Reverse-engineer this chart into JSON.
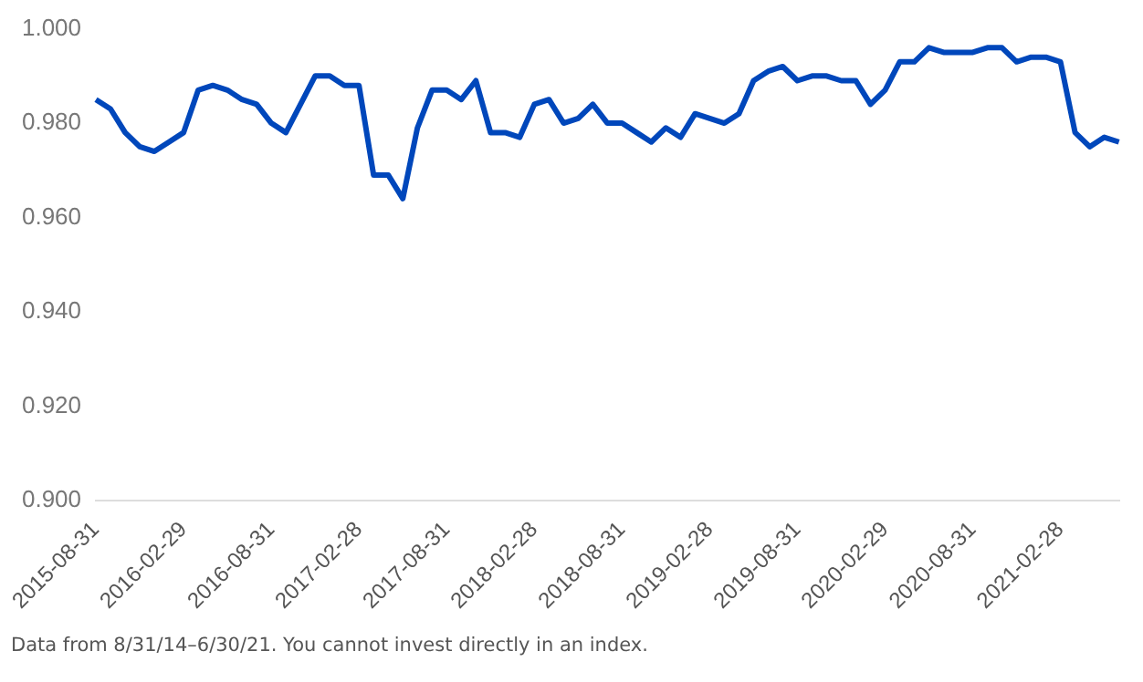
{
  "chart_data": {
    "type": "line",
    "categories": [
      "2015-08-31",
      null,
      null,
      null,
      null,
      null,
      "2016-02-29",
      null,
      null,
      null,
      null,
      null,
      "2016-08-31",
      null,
      null,
      null,
      null,
      null,
      "2017-02-28",
      null,
      null,
      null,
      null,
      null,
      "2017-08-31",
      null,
      null,
      null,
      null,
      null,
      "2018-02-28",
      null,
      null,
      null,
      null,
      null,
      "2018-08-31",
      null,
      null,
      null,
      null,
      null,
      "2019-02-28",
      null,
      null,
      null,
      null,
      null,
      "2019-08-31",
      null,
      null,
      null,
      null,
      null,
      "2020-02-29",
      null,
      null,
      null,
      null,
      null,
      "2020-08-31",
      null,
      null,
      null,
      null,
      null,
      "2021-02-28",
      null,
      null,
      null,
      null
    ],
    "series": [
      {
        "color": "#0047bb",
        "values": [
          0.985,
          0.983,
          0.978,
          0.975,
          0.974,
          0.976,
          0.978,
          0.987,
          0.988,
          0.987,
          0.985,
          0.984,
          0.98,
          0.978,
          0.984,
          0.99,
          0.99,
          0.988,
          0.988,
          0.969,
          0.969,
          0.964,
          0.979,
          0.987,
          0.987,
          0.985,
          0.989,
          0.978,
          0.978,
          0.977,
          0.984,
          0.985,
          0.98,
          0.981,
          0.984,
          0.98,
          0.98,
          0.978,
          0.976,
          0.979,
          0.977,
          0.982,
          0.981,
          0.98,
          0.982,
          0.989,
          0.991,
          0.992,
          0.989,
          0.99,
          0.99,
          0.989,
          0.989,
          0.984,
          0.987,
          0.993,
          0.993,
          0.996,
          0.995,
          0.995,
          0.995,
          0.996,
          0.996,
          0.993,
          0.994,
          0.994,
          0.993,
          0.978,
          0.975,
          0.977,
          0.976
        ]
      }
    ],
    "ylim": [
      0.9,
      1.0
    ],
    "yticks": [
      {
        "value": 0.9,
        "label": "0.900"
      },
      {
        "value": 0.92,
        "label": "0.920"
      },
      {
        "value": 0.94,
        "label": "0.940"
      },
      {
        "value": 0.96,
        "label": "0.960"
      },
      {
        "value": 0.98,
        "label": "0.980"
      },
      {
        "value": 1.0,
        "label": "1.000"
      }
    ],
    "grid": false,
    "legend": false,
    "marker": "none",
    "line_style": "solid",
    "annotations": [
      "Data from 8/31/14–6/30/21. You cannot invest directly in an index."
    ]
  }
}
